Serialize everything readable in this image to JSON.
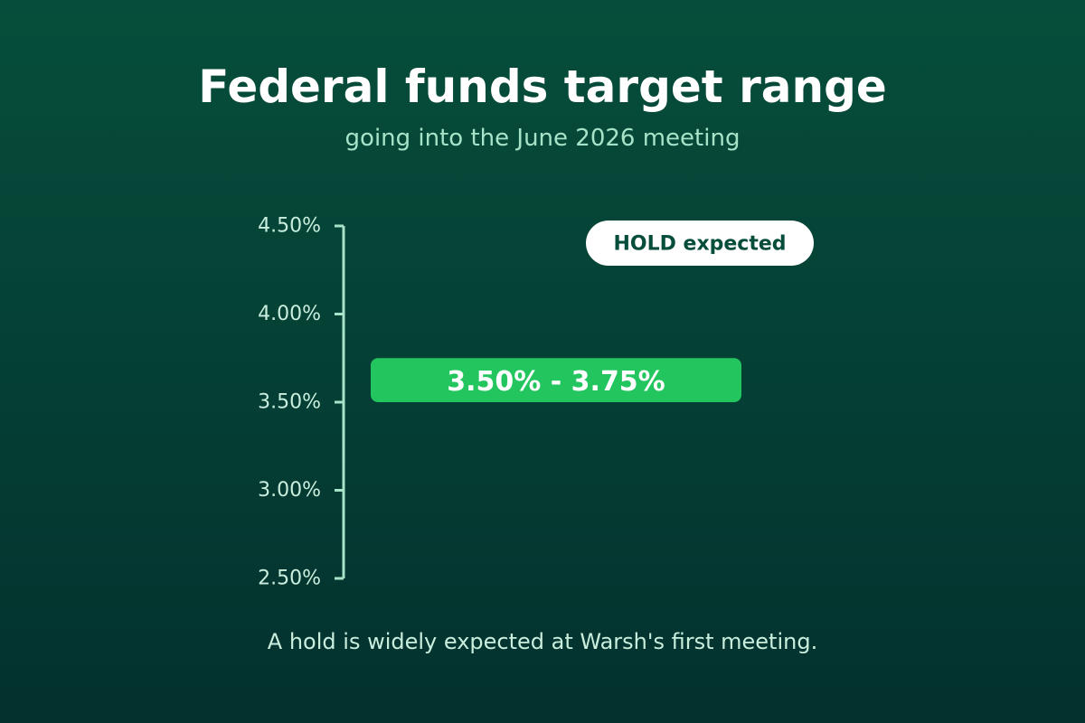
{
  "chart_data": {
    "type": "bar",
    "title": "Federal funds target range",
    "subtitle": "going into the June 2026 meeting",
    "y_ticks": [
      "4.50%",
      "4.00%",
      "3.50%",
      "3.00%",
      "2.50%"
    ],
    "y_tick_values": [
      4.5,
      4.0,
      3.5,
      3.0,
      2.5
    ],
    "ylim": [
      2.5,
      4.5
    ],
    "range": {
      "low": 3.5,
      "high": 3.75,
      "label": "3.50% - 3.75%"
    },
    "badge": "HOLD expected",
    "note": "A hold is widely expected at Warsh's first meeting.",
    "colors": {
      "bar": "#22c55e",
      "axis": "#a7e3c8",
      "badge_bg": "#ffffff",
      "badge_text": "#064e3b"
    }
  }
}
